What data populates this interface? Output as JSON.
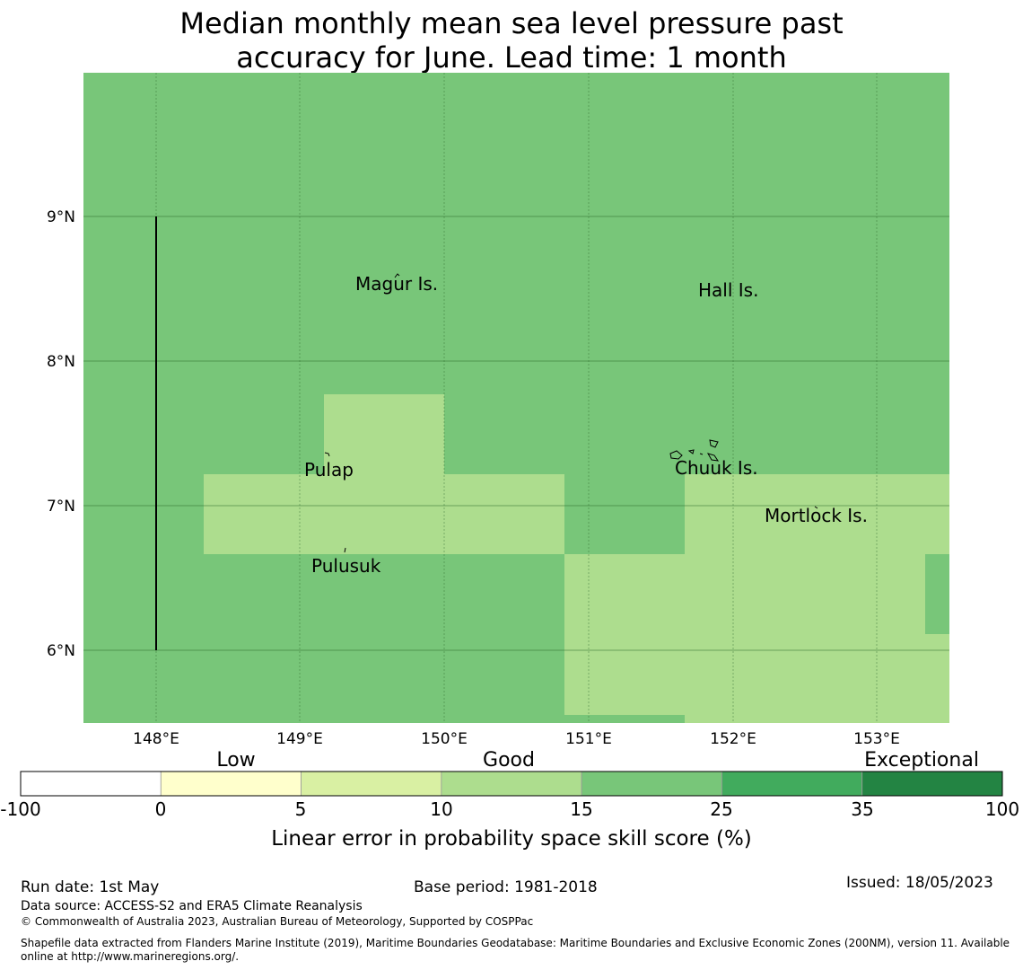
{
  "title": {
    "line1": "Median monthly mean sea level pressure past",
    "line2": "accuracy for June. Lead time: 1 month"
  },
  "map": {
    "lat_labels": [
      "9°N",
      "8°N",
      "7°N",
      "6°N"
    ],
    "lon_labels": [
      "148°E",
      "149°E",
      "150°E",
      "151°E",
      "152°E",
      "153°E"
    ],
    "places": [
      "Magur Is.",
      "Hall Is.",
      "Pulap",
      "Chuuk Is.",
      "Mortlock Is.",
      "Pulusuk"
    ]
  },
  "legend": {
    "categories": [
      "Low",
      "Good",
      "Exceptional"
    ],
    "ticks": [
      "-100",
      "0",
      "5",
      "10",
      "15",
      "25",
      "35",
      "100"
    ],
    "colors": [
      "#ffffff",
      "#ffffcc",
      "#d9f0a3",
      "#addd8e",
      "#78c679",
      "#41ab5d",
      "#238443"
    ],
    "label": "Linear error in probability space skill score (%)"
  },
  "footer": {
    "run_date": "Run date: 1st May",
    "base_period": "Base period: 1981-2018",
    "issued": "Issued: 18/05/2023",
    "data_source": "Data source: ACCESS-S2 and ERA5 Climate Reanalysis",
    "copyright": "© Commonwealth of Australia 2023, Australian Bureau of Meteorology, Supported by COSPPac",
    "shapefile": "Shapefile data extracted from Flanders Marine Institute (2019), Maritime Boundaries Geodatabase: Maritime Boundaries and Exclusive Economic Zones (200NM), version 11. Available online at http://www.marineregions.org/."
  }
}
